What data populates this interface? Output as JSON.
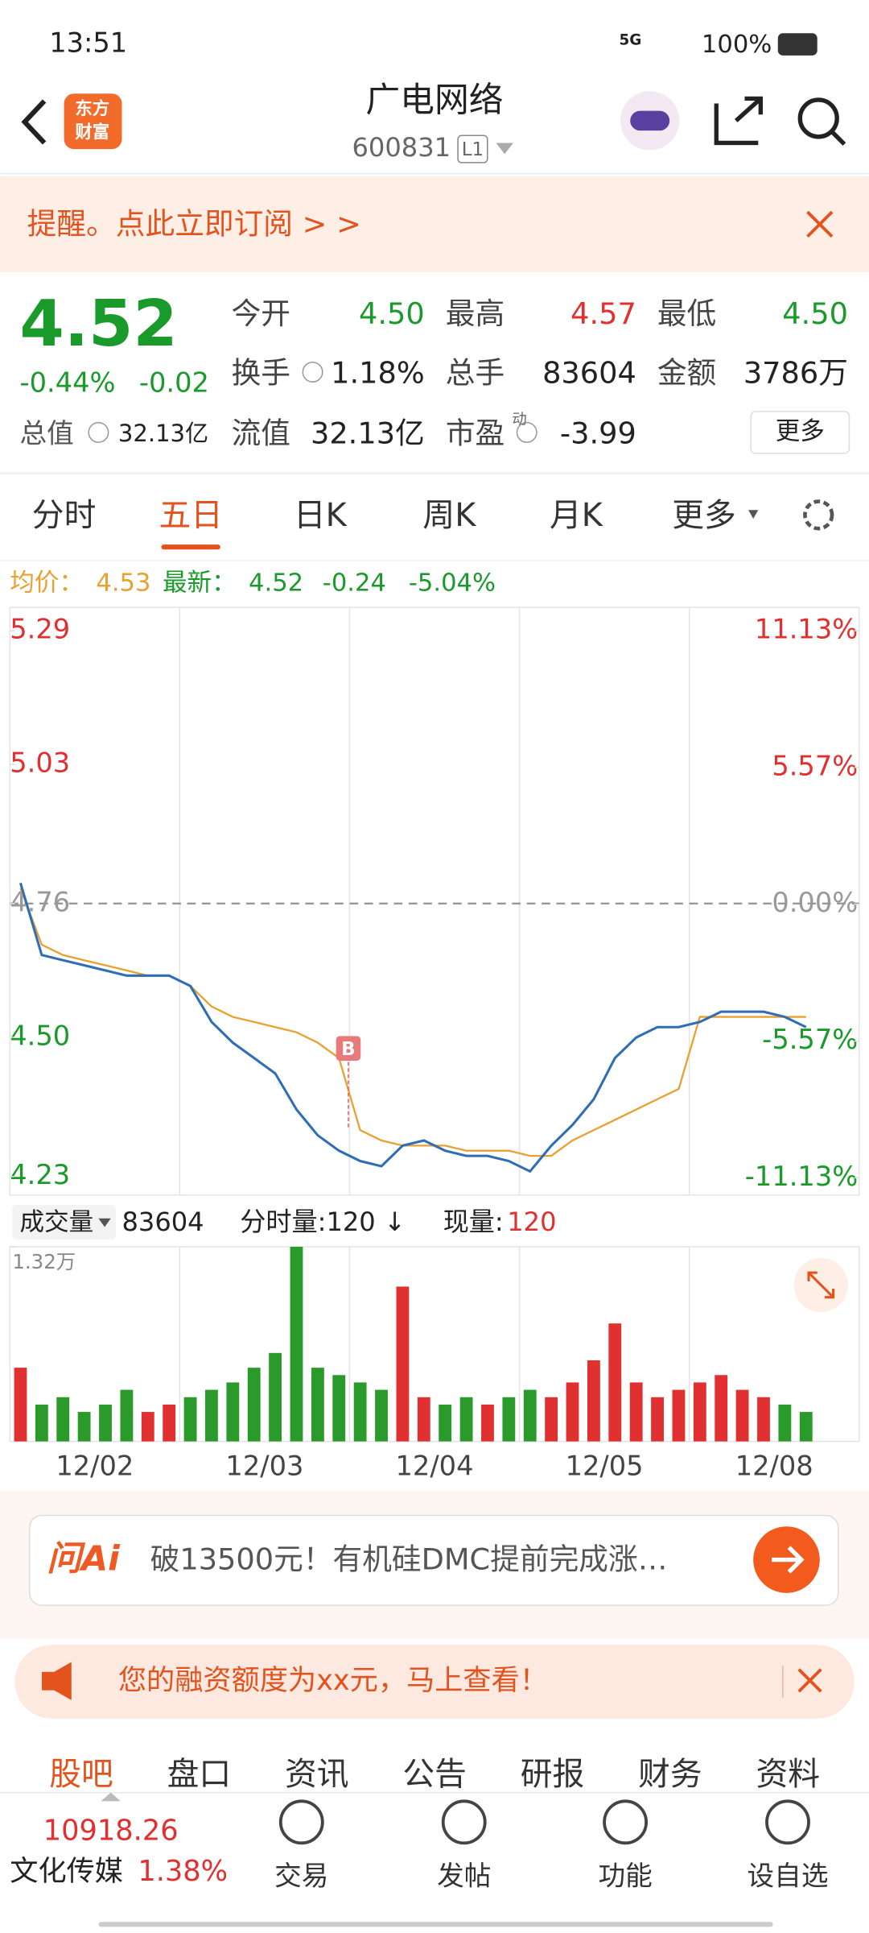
{
  "status_bar": {
    "time": "13:51",
    "network": "5G",
    "battery": "100%"
  },
  "header": {
    "title": "广电网络",
    "code": "600831",
    "level": "L1",
    "logo": [
      "东方",
      "财富"
    ]
  },
  "banner": {
    "text": "提醒。点此立即订阅 > >"
  },
  "quote": {
    "price": "4.52",
    "change_pct": "-0.44%",
    "change": "-0.02",
    "total_value_label": "总值",
    "total_value": "32.13亿",
    "fields": [
      {
        "label": "今开",
        "value": "4.50",
        "color": "#1a9a2a"
      },
      {
        "label": "最高",
        "value": "4.57",
        "color": "#e03030"
      },
      {
        "label": "最低",
        "value": "4.50",
        "color": "#1a9a2a"
      },
      {
        "label": "换手",
        "value": "1.18%",
        "color": "#222"
      },
      {
        "label": "总手",
        "value": "83604",
        "color": "#222"
      },
      {
        "label": "金额",
        "value": "3786万",
        "color": "#222"
      },
      {
        "label": "流值",
        "value": "32.13亿",
        "color": "#222"
      },
      {
        "label": "市盈",
        "value": "-3.99",
        "color": "#222"
      }
    ],
    "pe_tag": "动",
    "more": "更多"
  },
  "tabs": {
    "items": [
      "分时",
      "五日",
      "日K",
      "周K",
      "月K",
      "更多"
    ],
    "active": 1
  },
  "chart_data": [
    {
      "type": "line",
      "avg_label": "均价：",
      "avg": "4.53",
      "latest_label": "最新：",
      "latest": "4.52",
      "change": "-0.24",
      "change_pct": "-5.04%",
      "marker": "B",
      "days": [
        "12/02",
        "12/03",
        "12/04",
        "12/05",
        "12/08"
      ],
      "ylim": [
        4.194,
        5.335
      ],
      "yticks": [
        5.29,
        5.03,
        4.76,
        {
          "value": 4.5,
          "label": "4.50"
        },
        4.23
      ],
      "reference": 4.76,
      "y2lim": [
        -11.83,
        12.08
      ],
      "y2ticks": [
        {
          "value": 11.13,
          "label": "11.13%"
        },
        {
          "value": 5.57,
          "label": "5.57%"
        },
        {
          "value": 0,
          "label": "0.00%"
        },
        {
          "value": -5.57,
          "label": "-5.57%"
        },
        {
          "value": -11.13,
          "label": "-11.13%"
        }
      ],
      "series": [
        {
          "color": "#2f6db5",
          "values": [
            4.8,
            4.66,
            4.65,
            4.64,
            4.63,
            4.62,
            4.62,
            4.62,
            4.6,
            4.53,
            4.49,
            4.46,
            4.43,
            4.36,
            4.31,
            4.28,
            4.26,
            4.25,
            4.29,
            4.3,
            4.28,
            4.27,
            4.27,
            4.26,
            4.24,
            4.29,
            4.33,
            4.38,
            4.46,
            4.5,
            4.52,
            4.52,
            4.53,
            4.55,
            4.55,
            4.55,
            4.54,
            4.52,
            null,
            null
          ]
        },
        {
          "color": "#e8a030",
          "values": [
            4.79,
            4.68,
            4.66,
            4.65,
            4.64,
            4.63,
            4.62,
            4.62,
            4.6,
            4.56,
            4.54,
            4.53,
            4.52,
            4.51,
            4.49,
            4.46,
            4.32,
            4.3,
            4.29,
            4.29,
            4.29,
            4.28,
            4.28,
            4.28,
            4.27,
            4.27,
            4.3,
            4.32,
            4.34,
            4.36,
            4.38,
            4.4,
            4.54,
            4.54,
            4.54,
            4.54,
            4.54,
            4.54,
            null,
            null
          ]
        }
      ]
    },
    {
      "type": "bar",
      "label": "成交量",
      "total": "83604",
      "tick_volume_label": "分时量:120",
      "arrow": "↓",
      "current_label": "现量:",
      "current": "120",
      "ylim": [
        0,
        13200
      ],
      "yticks": [
        {
          "value": 13200,
          "label": "1.32万"
        }
      ],
      "up_color": "#e03030",
      "down_color": "#2a9a2a",
      "values": [
        5000,
        2500,
        3000,
        2000,
        2500,
        3500,
        2000,
        2500,
        3000,
        3500,
        4000,
        5000,
        6000,
        13200,
        5000,
        4500,
        4000,
        3500,
        10500,
        3000,
        2500,
        3000,
        2500,
        3000,
        3500,
        3000,
        4000,
        5500,
        8000,
        4000,
        3000,
        3500,
        4000,
        4500,
        3500,
        3000,
        2500,
        2000,
        null,
        null
      ]
    }
  ],
  "ai_bar": {
    "logo": "问Ai",
    "text": "破13500元！有机硅DMC提前完成涨…"
  },
  "notice": {
    "text": "您的融资额度为xx元，马上查看！"
  },
  "bottom_tabs": {
    "items": [
      "股吧",
      "盘口",
      "资讯",
      "公告",
      "研报",
      "财务",
      "资料"
    ],
    "active": 0
  },
  "nav": {
    "index_value": "10918.26",
    "index_name": "文化传媒",
    "index_change": "1.38%",
    "items": [
      "交易",
      "发帖",
      "功能",
      "设自选"
    ]
  }
}
